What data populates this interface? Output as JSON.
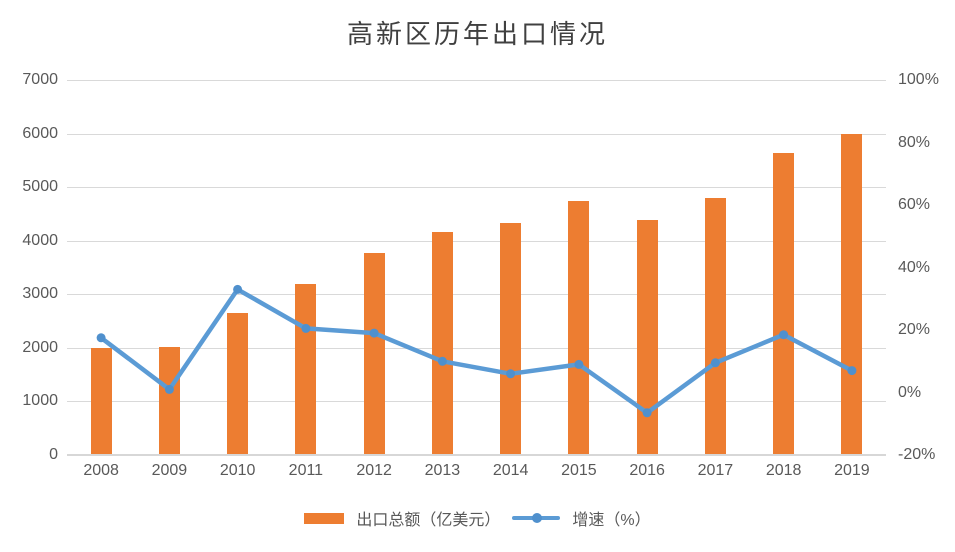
{
  "title": "高新区历年出口情况",
  "colors": {
    "bar": "#ed7d31",
    "line": "#5b9bd5",
    "marker": "#4f90cd",
    "grid": "#d9d9d9",
    "axis_text": "#595959",
    "title_text": "#404040",
    "background": "#ffffff"
  },
  "legend": [
    {
      "label": "出口总额（亿美元）",
      "type": "bar"
    },
    {
      "label": "增速（%）",
      "type": "line"
    }
  ],
  "chart_data": {
    "type": "bar",
    "subtype": "bar-line-combo",
    "title": "高新区历年出口情况",
    "categories": [
      "2008",
      "2009",
      "2010",
      "2011",
      "2012",
      "2013",
      "2014",
      "2015",
      "2016",
      "2017",
      "2018",
      "2019"
    ],
    "series": [
      {
        "name": "出口总额（亿美元）",
        "type": "bar",
        "axis": "left",
        "values": [
          2000,
          2010,
          2660,
          3200,
          3770,
          4160,
          4340,
          4740,
          4390,
          4790,
          5640,
          5990
        ]
      },
      {
        "name": "增速（%）",
        "type": "line",
        "axis": "right",
        "values": [
          17.5,
          1,
          33,
          20.5,
          19,
          10,
          6,
          9,
          -6.5,
          9.5,
          18.5,
          7
        ]
      }
    ],
    "left_axis": {
      "min": 0,
      "max": 7000,
      "step": 1000,
      "tick_labels": [
        "0",
        "1000",
        "2000",
        "3000",
        "4000",
        "5000",
        "6000",
        "7000"
      ]
    },
    "right_axis": {
      "min": -20,
      "max": 100,
      "step": 20,
      "tick_labels": [
        "-20%",
        "0%",
        "20%",
        "40%",
        "60%",
        "80%",
        "100%"
      ]
    },
    "grid": "horizontal-only",
    "legend_position": "bottom"
  }
}
